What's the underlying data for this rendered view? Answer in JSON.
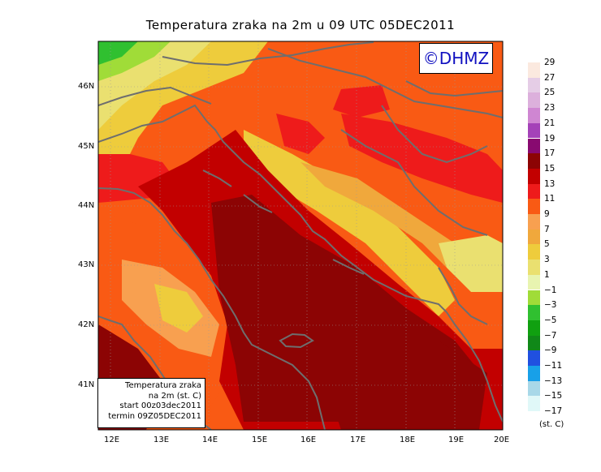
{
  "title": "Temperatura zraka na 2m u 09 UTC 05DEC2011",
  "logo_text": "©DHMZ",
  "info_box": {
    "line1": "Temperatura zraka",
    "line2": "na 2m (st. C)",
    "line3": "start 00z03dec2011",
    "line4": "termin 09Z05DEC2011"
  },
  "lat_labels": [
    "46N",
    "45N",
    "44N",
    "43N",
    "42N",
    "41N"
  ],
  "lon_labels": [
    "12E",
    "13E",
    "14E",
    "15E",
    "16E",
    "17E",
    "18E",
    "19E",
    "20E"
  ],
  "legend": {
    "units": "(st. C)",
    "items": [
      {
        "label": "29",
        "color": "#fbe9df"
      },
      {
        "label": "27",
        "color": "#e5cde6"
      },
      {
        "label": "25",
        "color": "#dcb0dc"
      },
      {
        "label": "23",
        "color": "#cf86d2"
      },
      {
        "label": "21",
        "color": "#a442b8"
      },
      {
        "label": "19",
        "color": "#880a70"
      },
      {
        "label": "17",
        "color": "#8c0404"
      },
      {
        "label": "15",
        "color": "#c20000"
      },
      {
        "label": "13",
        "color": "#ee1b1b"
      },
      {
        "label": "11",
        "color": "#f95a14"
      },
      {
        "label": "9",
        "color": "#f8a050"
      },
      {
        "label": "7",
        "color": "#f0a83c"
      },
      {
        "label": "5",
        "color": "#eecc3c"
      },
      {
        "label": "3",
        "color": "#eae070"
      },
      {
        "label": "1",
        "color": "#e8f4b0"
      },
      {
        "label": "−1",
        "color": "#a0dc38"
      },
      {
        "label": "−3",
        "color": "#30c030"
      },
      {
        "label": "−5",
        "color": "#10a010"
      },
      {
        "label": "−7",
        "color": "#108818"
      },
      {
        "label": "−9",
        "color": "#2050e0"
      },
      {
        "label": "−11",
        "color": "#18a0e8"
      },
      {
        "label": "−13",
        "color": "#a8d8e8"
      },
      {
        "label": "−15",
        "color": "#e0f8f8"
      },
      {
        "label": "−17",
        "color": "#ffffff"
      }
    ]
  },
  "colors": {
    "coastline": "#6e6e6e",
    "grid": "#9a9a9a"
  }
}
